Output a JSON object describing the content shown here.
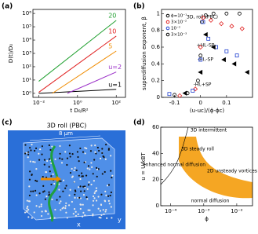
{
  "panel_labels": [
    "(a)",
    "(b)",
    "(c)",
    "(d)"
  ],
  "chart_data": [
    {
      "type": "line",
      "log": [
        "x",
        "y"
      ],
      "xlabel": "t D₀/R²",
      "ylabel": "D(t)/D₀",
      "xlim": [
        0.005,
        300
      ],
      "ylim": [
        0.5,
        2000000
      ],
      "xticks": [
        {
          "value": 0.01,
          "label": "10⁻²"
        },
        {
          "value": 1,
          "label": "10⁰"
        },
        {
          "value": 100,
          "label": "10²"
        }
      ],
      "yticks": [
        {
          "value": 1,
          "label": "10⁰"
        },
        {
          "value": 10,
          "label": "10¹"
        },
        {
          "value": 100,
          "label": "10²"
        },
        {
          "value": 1000,
          "label": "10³"
        },
        {
          "value": 10000,
          "label": "10⁴"
        },
        {
          "value": 100000,
          "label": "10⁵"
        },
        {
          "value": 1000000,
          "label": "10⁶"
        }
      ],
      "series": [
        {
          "name": "u=1",
          "color": "#000000",
          "x": [
            0.01,
            100
          ],
          "values": [
            1,
            2
          ]
        },
        {
          "name": "u=2",
          "color": "#9b30c8",
          "x": [
            0.3,
            100
          ],
          "values": [
            1,
            40
          ]
        },
        {
          "name": "5",
          "color": "#f08c00",
          "x": [
            0.05,
            100
          ],
          "values": [
            1,
            1500
          ]
        },
        {
          "name": "10",
          "color": "#e02020",
          "x": [
            0.01,
            100
          ],
          "values": [
            1.2,
            20000
          ]
        },
        {
          "name": "20",
          "color": "#20a030",
          "x": [
            0.01,
            100
          ],
          "values": [
            8,
            300000
          ]
        }
      ]
    },
    {
      "type": "scatter",
      "log": [],
      "xlabel": "(u-uc)/(ϕ-ϕc)",
      "ylabel": "superdiffusion exponent, β",
      "xlim": [
        -0.15,
        0.2
      ],
      "ylim": [
        0,
        1.05
      ],
      "xticks": [
        -0.1,
        0,
        0.1
      ],
      "yticks": [
        0,
        0.2,
        0.4,
        0.6,
        0.8,
        1
      ],
      "annotations": [
        "3D, roll (PBC)",
        "+HI,-SP",
        "-HI,-SP",
        "-HI,+SP"
      ],
      "series": [
        {
          "name": "ϕ=10⁻¹",
          "color": "#000000",
          "marker": "circle",
          "x": [
            -0.1,
            -0.05,
            -0.01,
            0,
            0.005,
            0.02,
            0.05,
            0.1,
            0.15
          ],
          "values": [
            0.03,
            0.05,
            0.2,
            0.5,
            0.9,
            0.98,
            1,
            1,
            1
          ]
        },
        {
          "name": "3×10⁻²",
          "color": "#e02020",
          "marker": "diamond",
          "x": [
            -0.08,
            -0.02,
            0,
            0.01,
            0.04,
            0.08,
            0.12,
            0.16
          ],
          "values": [
            0.02,
            0.1,
            0.6,
            0.95,
            0.92,
            0.88,
            0.85,
            0.82
          ]
        },
        {
          "name": "10⁻²",
          "color": "#2040d0",
          "marker": "square",
          "x": [
            -0.12,
            -0.03,
            0,
            0.01,
            0.03,
            0.06,
            0.1,
            0.14
          ],
          "values": [
            0.04,
            0.08,
            0.45,
            0.9,
            0.7,
            0.6,
            0.55,
            0.5
          ]
        },
        {
          "name": "3×10⁻³",
          "color": "#000000",
          "marker": "triangle",
          "x": [
            -0.06,
            0,
            0.02,
            0.05,
            0.09,
            0.13,
            0.18
          ],
          "values": [
            0.05,
            0.3,
            0.75,
            0.6,
            0.45,
            0.4,
            0.3
          ]
        }
      ]
    },
    {
      "type": "region",
      "log": [
        "x"
      ],
      "xlabel": "ϕ",
      "ylabel": "u = U/kBT",
      "xlim": [
        5e-05,
        0.03
      ],
      "ylim": [
        0,
        60
      ],
      "xticks": [
        {
          "value": 0.0001,
          "label": "10⁻⁴"
        },
        {
          "value": 0.001,
          "label": "10⁻³"
        },
        {
          "value": 0.01,
          "label": "10⁻²"
        }
      ],
      "yticks": [
        0,
        20,
        40,
        60
      ],
      "annotations": [
        "3D intermittent",
        "3D steady roll",
        "2D unsteady vortices",
        "enhanced normal diffusion",
        "normal diffusion"
      ]
    }
  ],
  "illustration": {
    "title": "3D roll (PBC)",
    "scale": "8 µm",
    "axes": [
      "x",
      "y"
    ]
  }
}
